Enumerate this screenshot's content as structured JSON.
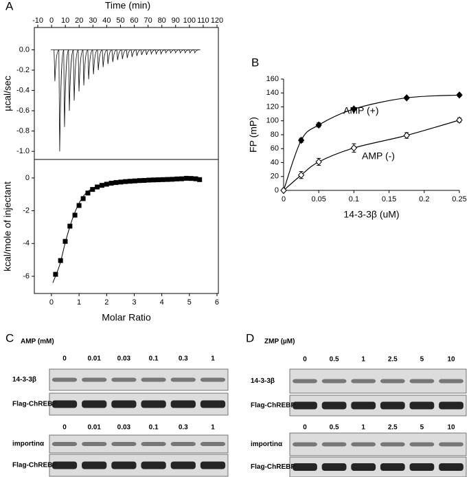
{
  "chart_data": [
    {
      "type": "thermogram",
      "panel": "A",
      "x_label": "Time (min)",
      "y_label": "µcal/sec",
      "x_axis": "top",
      "xlim": [
        -12.5,
        121
      ],
      "ylim": [
        -1.08,
        0.22
      ],
      "xticks": [
        -10,
        0,
        10,
        20,
        30,
        40,
        50,
        60,
        70,
        80,
        90,
        100,
        110,
        120
      ],
      "yticks": [
        {
          "value": 0,
          "label": "0.0"
        },
        -0.2,
        -0.4,
        -0.6,
        -0.8,
        {
          "value": -1,
          "label": "-1.0"
        }
      ],
      "color": "#000000",
      "x": [
        2.4,
        5.9,
        9.4,
        12.9,
        16.4,
        19.9,
        23.4,
        26.9,
        30.4,
        33.9,
        37.4,
        40.9,
        44.4,
        47.9,
        51.4,
        54.9,
        58.4,
        61.9,
        65.4,
        68.9,
        72.4,
        75.9,
        79.4,
        82.9,
        86.4,
        89.9,
        93.4,
        96.9,
        100.4,
        103.9
      ],
      "values": [
        -0.31,
        -1.0,
        -0.76,
        -0.6,
        -0.5,
        -0.41,
        -0.35,
        -0.29,
        -0.24,
        -0.2,
        -0.17,
        -0.14,
        -0.12,
        -0.1,
        -0.09,
        -0.08,
        -0.07,
        -0.06,
        -0.05,
        -0.05,
        -0.04,
        -0.04,
        -0.04,
        -0.03,
        -0.03,
        -0.03,
        -0.03,
        -0.03,
        -0.03,
        -0.03
      ]
    },
    {
      "type": "scatter",
      "x_label": "Molar Ratio",
      "y_label": "kcal/mole of injectant",
      "x_axis": "bottom",
      "xlim": [
        -0.62,
        6.05
      ],
      "ylim": [
        -7.05,
        1.13
      ],
      "xticks": [
        0,
        1,
        2,
        3,
        4,
        5,
        6
      ],
      "yticks": [
        -6,
        -4,
        -2,
        0
      ],
      "color": "#000000",
      "x": [
        0.15,
        0.33,
        0.5,
        0.67,
        0.85,
        1.0,
        1.15,
        1.32,
        1.49,
        1.66,
        1.83,
        2.0,
        2.17,
        2.34,
        2.51,
        2.68,
        2.85,
        3.02,
        3.19,
        3.36,
        3.53,
        3.7,
        3.87,
        4.04,
        4.21,
        4.38,
        4.55,
        4.72,
        4.89,
        5.06,
        5.23,
        5.37
      ],
      "values": [
        -5.88,
        -5.04,
        -3.87,
        -2.94,
        -2.27,
        -1.68,
        -1.26,
        -0.92,
        -0.7,
        -0.55,
        -0.45,
        -0.38,
        -0.32,
        -0.28,
        -0.25,
        -0.22,
        -0.2,
        -0.18,
        -0.16,
        -0.15,
        -0.13,
        -0.12,
        -0.11,
        -0.1,
        -0.09,
        -0.08,
        -0.06,
        -0.05,
        -0.02,
        -0.03,
        -0.05,
        -0.1
      ],
      "fit": {
        "x": [
          0.05,
          0.3,
          0.5,
          0.7,
          0.9,
          1.1,
          1.3,
          1.6,
          2.0,
          3.0,
          4.0,
          5.4
        ],
        "values": [
          -6.4,
          -5.3,
          -3.95,
          -2.8,
          -1.9,
          -1.25,
          -0.85,
          -0.55,
          -0.38,
          -0.18,
          -0.08,
          -0.03
        ]
      }
    },
    {
      "type": "line",
      "panel": "B",
      "x_label": "14-3-3β (uM)",
      "y_label": "FP (mP)",
      "x_axis": "bottom",
      "xlim": [
        0,
        0.25
      ],
      "ylim": [
        0,
        160
      ],
      "xticks": [
        0,
        0.05,
        0.1,
        0.15,
        0.2,
        0.25
      ],
      "yticks": [
        0,
        20,
        40,
        60,
        80,
        100,
        120,
        140,
        160
      ],
      "x": [
        0,
        0.025,
        0.05,
        0.1,
        0.175,
        0.25
      ],
      "series": [
        {
          "name": "AMP (+)",
          "color": "#000000",
          "marker": "filled",
          "values": [
            0,
            72,
            94,
            117,
            133,
            137
          ],
          "errors": [
            0,
            3,
            3,
            2,
            2,
            2
          ]
        },
        {
          "name": "AMP (-)",
          "color": "#000000",
          "marker": "open",
          "values": [
            0,
            22,
            41,
            61,
            79,
            101
          ],
          "errors": [
            0,
            5,
            5,
            6,
            4,
            3
          ]
        }
      ]
    }
  ],
  "blots": [
    {
      "panel": "C",
      "treatment": "AMP (mM)",
      "groups": [
        {
          "lanes": [
            "0",
            "0.01",
            "0.03",
            "0.1",
            "0.3",
            "1"
          ],
          "rows": [
            "14-3-3β",
            "Flag-ChREBP"
          ]
        },
        {
          "lanes": [
            "0",
            "0.01",
            "0.03",
            "0.1",
            "0.3",
            "1"
          ],
          "rows": [
            "importinα",
            "Flag-ChREBP"
          ]
        }
      ]
    },
    {
      "panel": "D",
      "treatment": "ZMP (µM)",
      "groups": [
        {
          "lanes": [
            "0",
            "0.5",
            "1",
            "2.5",
            "5",
            "10"
          ],
          "rows": [
            "14-3-3β",
            "Flag-ChREBP"
          ]
        },
        {
          "lanes": [
            "0",
            "0.5",
            "1",
            "2.5",
            "5",
            "10"
          ],
          "rows": [
            "importinα",
            "Flag-ChREBP"
          ]
        }
      ]
    }
  ]
}
